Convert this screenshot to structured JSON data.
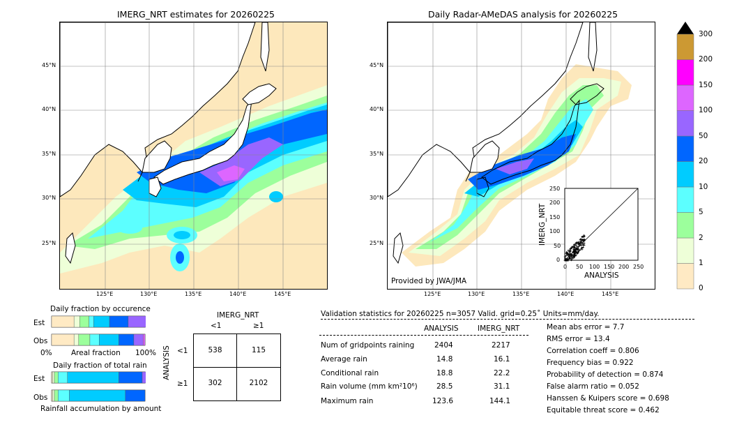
{
  "left_map": {
    "title": "IMERG_NRT estimates for 20260225",
    "lat_labels": [
      "45°N",
      "40°N",
      "35°N",
      "30°N",
      "25°N"
    ],
    "lon_labels": [
      "125°E",
      "130°E",
      "135°E",
      "140°E",
      "145°E"
    ]
  },
  "right_map": {
    "title": "Daily Radar-AMeDAS analysis for 20260225",
    "lat_labels": [
      "45°N",
      "40°N",
      "35°N",
      "30°N",
      "25°N"
    ],
    "lon_labels": [
      "125°E",
      "130°E",
      "135°E",
      "140°E",
      "145°E"
    ],
    "credit": "Provided by JWA/JMA"
  },
  "colorbar": {
    "labels": [
      "300",
      "200",
      "150",
      "100",
      "50",
      "20",
      "10",
      "5",
      "2",
      "1",
      "0"
    ],
    "colors": [
      "#ffeac4",
      "#eeffd8",
      "#9cff9c",
      "#5cffff",
      "#00ccff",
      "#0066ff",
      "#9966ff",
      "#dd66ff",
      "#ff00ff",
      "#cc9933"
    ],
    "extend_color": "#000000"
  },
  "colors": {
    "ocean": "#fde8bc",
    "land_bg": "#ffffff",
    "c1": "#ffeac4",
    "c2": "#eeffd8",
    "c5": "#9cff9c",
    "c10": "#5cffff",
    "c20": "#00ccff",
    "c50": "#0066ff",
    "c100": "#9966ff",
    "c150": "#dd66ff"
  },
  "inset": {
    "ylabel": "IMERG_NRT",
    "xlabel": "ANALYSIS",
    "ticks": [
      "0",
      "50",
      "100",
      "150",
      "200",
      "250"
    ]
  },
  "fraction_occurrence": {
    "title": "Daily fraction by occurence",
    "rows": [
      "Est",
      "Obs"
    ],
    "axis_left": "0%",
    "axis_mid": "Areal fraction",
    "axis_right": "100%"
  },
  "fraction_total": {
    "title": "Daily fraction of total rain",
    "rows": [
      "Est",
      "Obs"
    ],
    "axis_label": "Rainfall accumulation by amount"
  },
  "contingency": {
    "col_title": "IMERG_NRT",
    "col_labels": [
      "<1",
      "≥1"
    ],
    "row_title": "ANALYSIS",
    "row_labels": [
      "<1",
      "≥1"
    ],
    "values": [
      [
        "538",
        "115"
      ],
      [
        "302",
        "2102"
      ]
    ]
  },
  "validation": {
    "header": "Validation statistics for 20260225  n=3057 Valid. grid=0.25˚ Units=mm/day.",
    "col_analysis": "ANALYSIS",
    "col_imerg": "IMERG_NRT",
    "rows": [
      {
        "label": "Num of gridpoints raining",
        "analysis": "2404",
        "imerg": "2217"
      },
      {
        "label": "Average rain",
        "analysis": "14.8",
        "imerg": "16.1"
      },
      {
        "label": "Conditional rain",
        "analysis": "18.8",
        "imerg": "22.2"
      },
      {
        "label": "Rain volume (mm km²10⁶)",
        "analysis": "28.5",
        "imerg": "31.1"
      },
      {
        "label": "Maximum rain",
        "analysis": "123.6",
        "imerg": "144.1"
      }
    ],
    "scores": [
      "Mean abs error =    7.7",
      "RMS error =   13.4",
      "Correlation coeff =  0.806",
      "Frequency bias =  0.922",
      "Probability of detection =  0.874",
      "False alarm ratio =  0.052",
      "Hanssen & Kuipers score =  0.698",
      "Equitable threat score =  0.462"
    ]
  },
  "chart_data": {
    "type": "bar",
    "occurrence_fractions": {
      "categories": [
        "0",
        "1",
        "2",
        "5",
        "10",
        "20",
        "50",
        "100",
        "150",
        "200"
      ],
      "est": [
        0.24,
        0.06,
        0.1,
        0.05,
        0.17,
        0.2,
        0.2,
        0.05,
        0.01,
        0.0
      ],
      "obs": [
        0.24,
        0.05,
        0.12,
        0.1,
        0.21,
        0.16,
        0.1,
        0.02,
        0.0,
        0.0
      ]
    },
    "total_rain_fractions": {
      "est": [
        0.01,
        0.02,
        0.04,
        0.1,
        0.55,
        0.25,
        0.1
      ],
      "obs": [
        0.01,
        0.02,
        0.04,
        0.12,
        0.6,
        0.21,
        0.0
      ]
    },
    "scatter_xlim": [
      0,
      250
    ],
    "scatter_ylim": [
      0,
      250
    ]
  }
}
